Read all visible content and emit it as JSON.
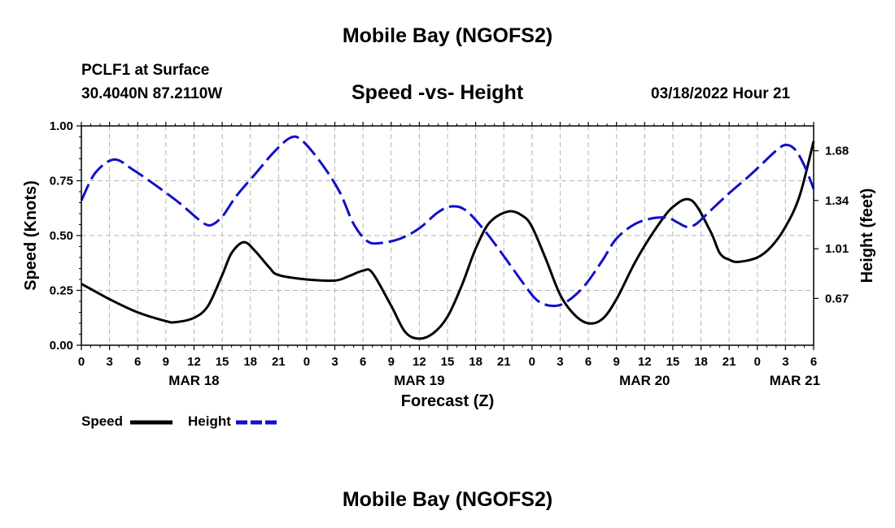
{
  "header": {
    "title": "Mobile Bay (NGOFS2)",
    "station": "PCLF1 at Surface",
    "coords": "30.4040N  87.2110W",
    "chart_title": "Speed -vs- Height",
    "date": "03/18/2022 Hour 21"
  },
  "footer": {
    "title": "Mobile Bay (NGOFS2)"
  },
  "legend": {
    "speed_label": "Speed",
    "height_label": "Height"
  },
  "colors": {
    "speed": "#000000",
    "height": "#1010c8",
    "grid": "#b4b4b4"
  },
  "chart_data": {
    "type": "line",
    "title": "Speed -vs- Height",
    "xlabel": "Forecast (Z)",
    "ylabel_left": "Speed (Knots)",
    "ylabel_right": "Height (feet)",
    "x_unit": "hours from 0Z MAR 18",
    "xlim": [
      0,
      78
    ],
    "ylim_left": [
      0,
      1
    ],
    "ylim_right": [
      0.35,
      1.85
    ],
    "grid": true,
    "legend_position": "bottom-left",
    "x_ticks": [
      {
        "hour": 0,
        "label": "0"
      },
      {
        "hour": 3,
        "label": "3"
      },
      {
        "hour": 6,
        "label": "6"
      },
      {
        "hour": 9,
        "label": "9"
      },
      {
        "hour": 12,
        "label": "12"
      },
      {
        "hour": 15,
        "label": "15"
      },
      {
        "hour": 18,
        "label": "18"
      },
      {
        "hour": 21,
        "label": "21"
      },
      {
        "hour": 24,
        "label": "0"
      },
      {
        "hour": 27,
        "label": "3"
      },
      {
        "hour": 30,
        "label": "6"
      },
      {
        "hour": 33,
        "label": "9"
      },
      {
        "hour": 36,
        "label": "12"
      },
      {
        "hour": 39,
        "label": "15"
      },
      {
        "hour": 42,
        "label": "18"
      },
      {
        "hour": 45,
        "label": "21"
      },
      {
        "hour": 48,
        "label": "0"
      },
      {
        "hour": 51,
        "label": "3"
      },
      {
        "hour": 54,
        "label": "6"
      },
      {
        "hour": 57,
        "label": "9"
      },
      {
        "hour": 60,
        "label": "12"
      },
      {
        "hour": 63,
        "label": "15"
      },
      {
        "hour": 66,
        "label": "18"
      },
      {
        "hour": 69,
        "label": "21"
      },
      {
        "hour": 72,
        "label": "0"
      },
      {
        "hour": 75,
        "label": "3"
      },
      {
        "hour": 78,
        "label": "6"
      }
    ],
    "date_labels": [
      {
        "hour": 12,
        "label": "MAR 18"
      },
      {
        "hour": 36,
        "label": "MAR 19"
      },
      {
        "hour": 60,
        "label": "MAR 20"
      },
      {
        "hour": 76,
        "label": "MAR 21"
      }
    ],
    "y_ticks_left": [
      {
        "value": 0,
        "label": "0.00"
      },
      {
        "value": 0.25,
        "label": "0.25"
      },
      {
        "value": 0.5,
        "label": "0.50"
      },
      {
        "value": 0.75,
        "label": "0.75"
      },
      {
        "value": 1.0,
        "label": "1.00"
      }
    ],
    "y_ticks_right": [
      {
        "value": 0.67,
        "label": "0.67"
      },
      {
        "value": 1.01,
        "label": "1.01"
      },
      {
        "value": 1.34,
        "label": "1.34"
      },
      {
        "value": 1.68,
        "label": "1.68"
      }
    ],
    "series": [
      {
        "name": "Speed",
        "axis": "left",
        "style": "solid",
        "x": [
          0,
          3,
          6,
          9,
          10,
          12,
          13.5,
          15,
          16,
          17.3,
          18.5,
          20,
          21,
          24,
          27,
          28.5,
          30,
          31,
          33,
          34.5,
          36,
          37.5,
          39,
          40.5,
          42,
          43.5,
          45.5,
          47,
          48,
          49.5,
          51,
          52.5,
          54,
          55.5,
          57,
          59,
          61,
          63,
          65,
          67,
          68,
          69,
          70,
          72,
          73.5,
          75,
          76.5,
          78
        ],
        "y": [
          0.28,
          0.21,
          0.15,
          0.11,
          0.105,
          0.125,
          0.18,
          0.32,
          0.42,
          0.47,
          0.43,
          0.355,
          0.32,
          0.3,
          0.295,
          0.315,
          0.34,
          0.33,
          0.18,
          0.06,
          0.03,
          0.055,
          0.13,
          0.27,
          0.44,
          0.56,
          0.61,
          0.59,
          0.54,
          0.39,
          0.23,
          0.14,
          0.1,
          0.12,
          0.21,
          0.38,
          0.52,
          0.63,
          0.66,
          0.52,
          0.42,
          0.39,
          0.38,
          0.4,
          0.45,
          0.54,
          0.68,
          0.93
        ]
      },
      {
        "name": "Height",
        "axis": "right",
        "style": "dashed",
        "x": [
          0,
          1.5,
          3.5,
          5.5,
          8,
          10.5,
          12.5,
          13.7,
          15,
          16.5,
          18.5,
          20.5,
          22.3,
          23.5,
          25.5,
          27.5,
          29,
          30.5,
          32,
          34,
          36,
          38,
          39.5,
          41,
          43,
          45,
          47,
          48.5,
          50,
          51.5,
          53.5,
          55.5,
          57,
          59,
          61,
          62.5,
          63.5,
          64.5,
          65.5,
          67,
          69,
          71,
          72.5,
          74,
          75,
          76,
          77,
          78
        ],
        "y": [
          1.34,
          1.53,
          1.62,
          1.55,
          1.44,
          1.32,
          1.21,
          1.17,
          1.23,
          1.37,
          1.52,
          1.67,
          1.77,
          1.75,
          1.6,
          1.4,
          1.18,
          1.06,
          1.05,
          1.08,
          1.15,
          1.26,
          1.3,
          1.27,
          1.13,
          0.96,
          0.78,
          0.66,
          0.62,
          0.64,
          0.75,
          0.93,
          1.08,
          1.18,
          1.22,
          1.22,
          1.19,
          1.16,
          1.18,
          1.27,
          1.39,
          1.5,
          1.59,
          1.68,
          1.72,
          1.69,
          1.58,
          1.42
        ]
      }
    ]
  }
}
